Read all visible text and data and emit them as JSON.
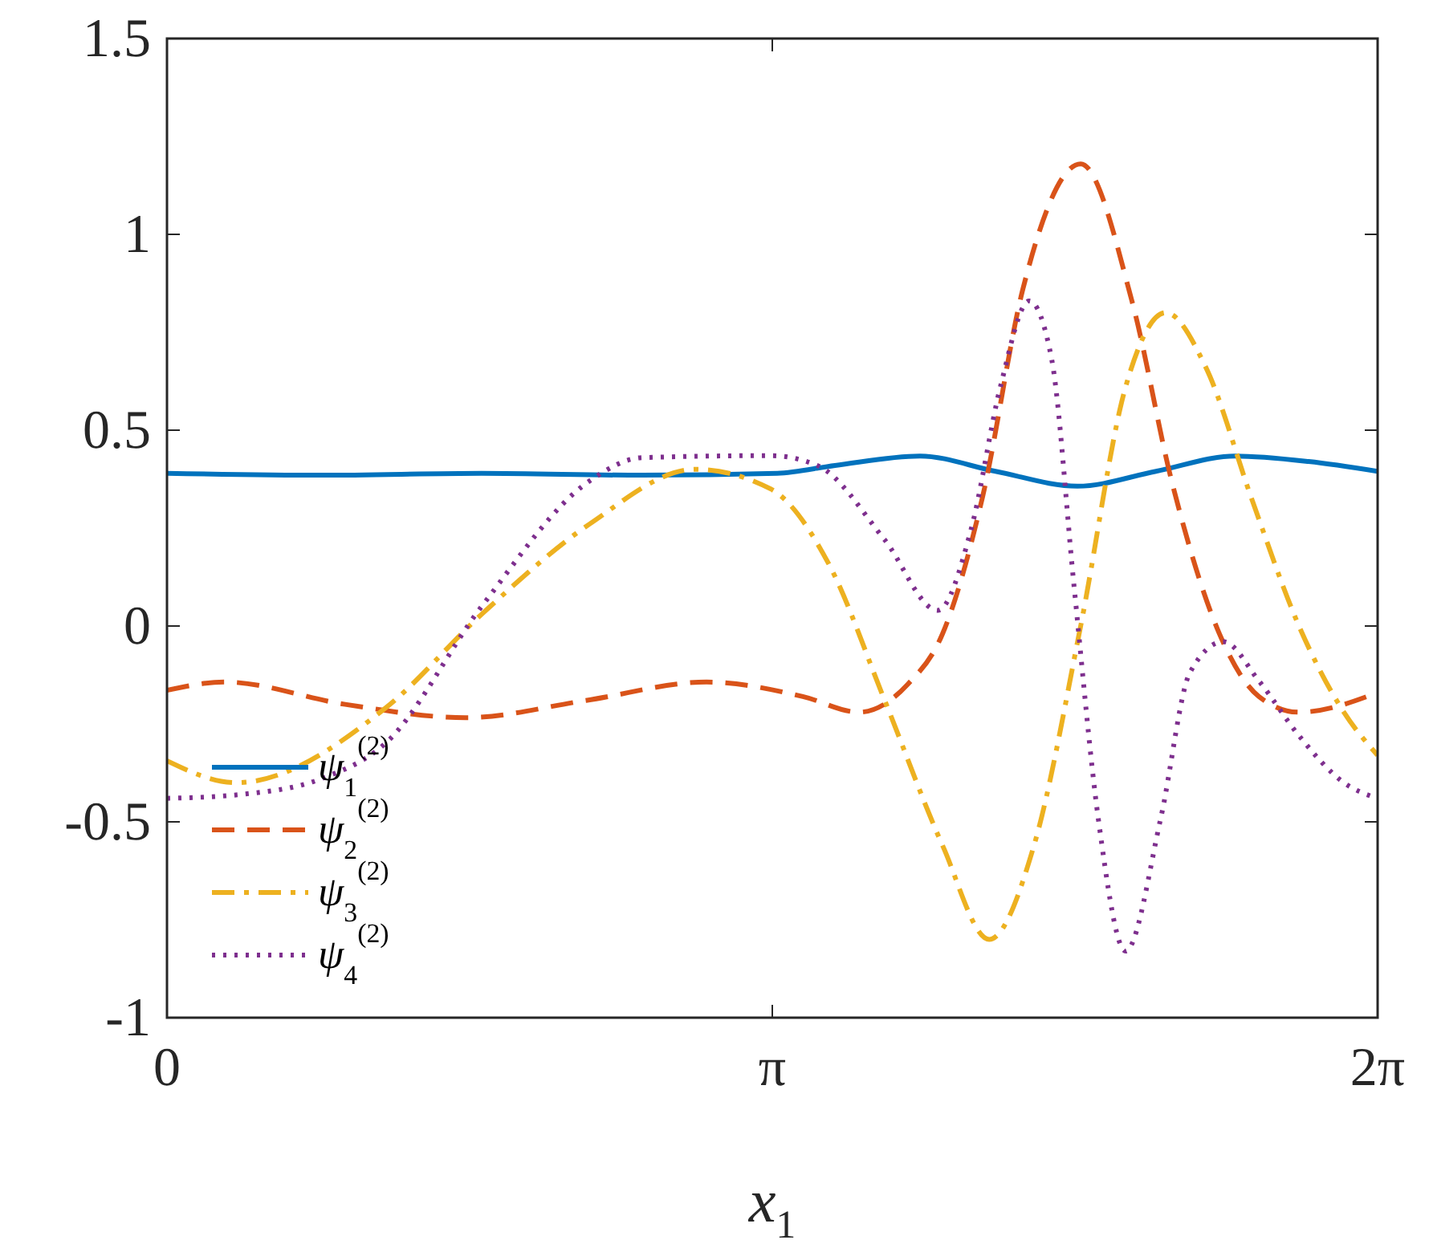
{
  "chart_data": {
    "type": "line",
    "xlabel": "x$_{1}$",
    "xlim": [
      0,
      6.2832
    ],
    "xticks": [
      {
        "value": 0,
        "label": "0"
      },
      {
        "value": 3.1416,
        "label": "π"
      },
      {
        "value": 6.2832,
        "label": "2π"
      }
    ],
    "ylim": [
      -1,
      1.5
    ],
    "yticks": [
      -1,
      -0.5,
      0,
      0.5,
      1,
      1.5
    ],
    "grid": false,
    "legend": "bottom left",
    "series": [
      {
        "name": "ψ$_{1}$$^{(2)}$",
        "color": "#0072bd",
        "line_style": "solid",
        "x": [
          0,
          0.8,
          1.633,
          2.467,
          3.167,
          3.467,
          3.908,
          4.3,
          4.725,
          5.133,
          5.542,
          5.925,
          6.283
        ],
        "values": [
          0.39,
          0.385,
          0.39,
          0.385,
          0.39,
          0.41,
          0.434,
          0.395,
          0.357,
          0.395,
          0.434,
          0.42,
          0.395
        ]
      },
      {
        "name": "ψ$_{2}$$^{(2)}$",
        "color": "#d95319",
        "line_style": "dashed",
        "x": [
          0,
          0.3,
          0.925,
          1.55,
          2.175,
          2.8,
          3.3,
          3.592,
          3.842,
          4.025,
          4.233,
          4.442,
          4.742,
          5.008,
          5.217,
          5.458,
          5.667,
          5.875,
          6.283
        ],
        "values": [
          -0.164,
          -0.143,
          -0.2,
          -0.234,
          -0.19,
          -0.143,
          -0.18,
          -0.22,
          -0.15,
          -0.02,
          0.33,
          0.86,
          1.18,
          0.83,
          0.365,
          -0.015,
          -0.18,
          -0.22,
          -0.17
        ]
      },
      {
        "name": "ψ$_{3}$$^{(2)}$",
        "color": "#edb120",
        "line_style": "dashdot",
        "x": [
          0,
          0.358,
          1.133,
          1.633,
          2.192,
          2.742,
          3.133,
          3.433,
          3.725,
          4.025,
          4.267,
          4.5,
          4.742,
          4.975,
          5.183,
          5.392,
          5.633,
          5.875,
          6.108,
          6.283
        ],
        "values": [
          -0.344,
          -0.4,
          -0.21,
          0.03,
          0.26,
          0.4,
          0.35,
          0.16,
          -0.19,
          -0.56,
          -0.8,
          -0.56,
          0,
          0.61,
          0.8,
          0.66,
          0.32,
          0,
          -0.22,
          -0.33
        ]
      },
      {
        "name": "ψ$_{4}$$^{(2)}$",
        "color": "#7e2f8e",
        "line_style": "dotted",
        "x": [
          0,
          0.383,
          0.8,
          1.133,
          1.633,
          2.192,
          2.467,
          3.133,
          3.375,
          3.725,
          4.0,
          4.175,
          4.325,
          4.475,
          4.592,
          4.708,
          4.833,
          4.975,
          5.158,
          5.308,
          5.483,
          5.667,
          5.875,
          6.108,
          6.283
        ],
        "values": [
          -0.44,
          -0.43,
          -0.39,
          -0.3,
          0.05,
          0.37,
          0.43,
          0.435,
          0.41,
          0.22,
          0.04,
          0.25,
          0.61,
          0.83,
          0.68,
          0.1,
          -0.49,
          -0.83,
          -0.49,
          -0.12,
          -0.04,
          -0.14,
          -0.28,
          -0.4,
          -0.44
        ]
      }
    ]
  }
}
